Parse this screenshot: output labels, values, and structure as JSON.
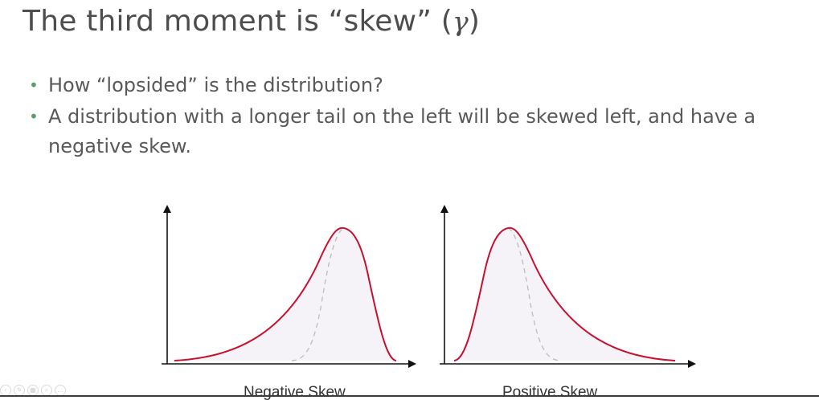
{
  "slide": {
    "title_main": "The third moment is “skew” (",
    "title_symbol": "γ",
    "title_close": ")",
    "bullets": [
      "How “lopsided” is the distribution?",
      "A distribution with a longer tail on the left will be skewed left, and have a negative skew."
    ]
  },
  "diagram": {
    "curve_color": "#c8102e",
    "reference_curve_color": "#bbbbbb",
    "fill_color": "#f6f3f8",
    "left_caption": "Negative Skew",
    "right_caption": "Positive Skew"
  },
  "controls": {
    "icons": [
      "prev-icon",
      "pen-icon",
      "slides-icon",
      "zoom-icon",
      "more-icon"
    ]
  }
}
